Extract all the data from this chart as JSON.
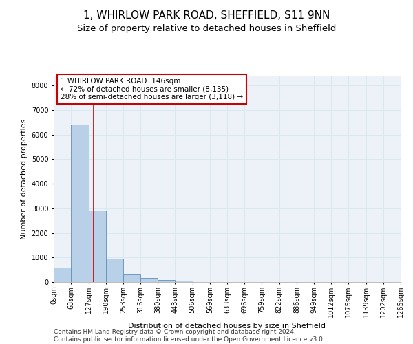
{
  "title": "1, WHIRLOW PARK ROAD, SHEFFIELD, S11 9NN",
  "subtitle": "Size of property relative to detached houses in Sheffield",
  "xlabel": "Distribution of detached houses by size in Sheffield",
  "ylabel": "Number of detached properties",
  "property_size": 146,
  "annotation_line1": "1 WHIRLOW PARK ROAD: 146sqm",
  "annotation_line2": "← 72% of detached houses are smaller (8,135)",
  "annotation_line3": "28% of semi-detached houses are larger (3,118) →",
  "bar_color": "#b8d0e8",
  "bar_edge_color": "#6090b8",
  "vline_color": "#cc0000",
  "annotation_box_color": "#cc0000",
  "grid_color": "#dce8f0",
  "background_color": "#edf2f8",
  "bin_edges": [
    0,
    63,
    127,
    190,
    253,
    316,
    380,
    443,
    506,
    569,
    633,
    696,
    759,
    822,
    886,
    949,
    1012,
    1075,
    1139,
    1202,
    1265
  ],
  "bar_heights": [
    580,
    6400,
    2920,
    960,
    350,
    155,
    90,
    55,
    0,
    0,
    0,
    0,
    0,
    0,
    0,
    0,
    0,
    0,
    0,
    0
  ],
  "ylim": [
    0,
    8400
  ],
  "yticks": [
    0,
    1000,
    2000,
    3000,
    4000,
    5000,
    6000,
    7000,
    8000
  ],
  "footer_line1": "Contains HM Land Registry data © Crown copyright and database right 2024.",
  "footer_line2": "Contains public sector information licensed under the Open Government Licence v3.0.",
  "title_fontsize": 11,
  "subtitle_fontsize": 9.5,
  "axis_label_fontsize": 8,
  "tick_fontsize": 7,
  "annotation_fontsize": 7.5,
  "footer_fontsize": 6.5
}
